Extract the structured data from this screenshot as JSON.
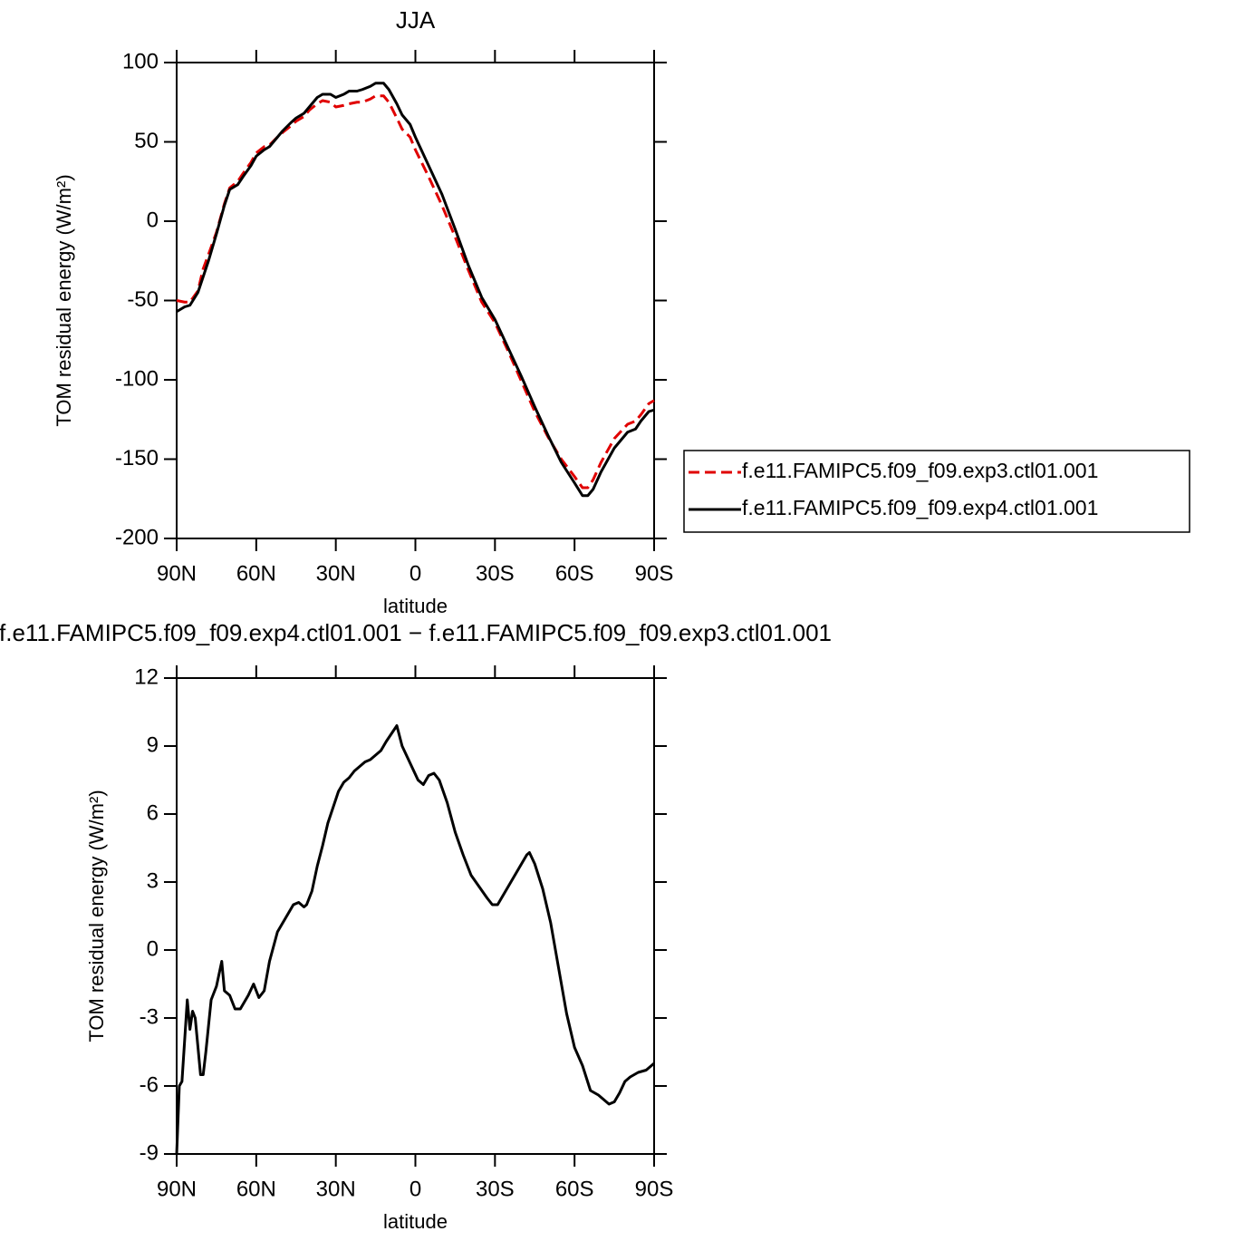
{
  "chart_data": [
    {
      "type": "line",
      "title": "JJA",
      "xlabel": "latitude",
      "ylabel": "TOM residual energy (W/m²)",
      "xlim": [
        90,
        -90
      ],
      "xticks": [
        {
          "value": 90,
          "label": "90N"
        },
        {
          "value": 60,
          "label": "60N"
        },
        {
          "value": 30,
          "label": "30N"
        },
        0,
        {
          "value": -30,
          "label": "30S"
        },
        {
          "value": -60,
          "label": "60S"
        },
        {
          "value": -90,
          "label": "90S"
        }
      ],
      "ylim": [
        -200,
        100
      ],
      "yticks": [
        -200,
        -150,
        -100,
        -50,
        0,
        50,
        100
      ],
      "legend": "right",
      "x": [
        90,
        87,
        85,
        82,
        80,
        78,
        75,
        72,
        70,
        67,
        65,
        62,
        60,
        57,
        55,
        52,
        50,
        47,
        45,
        42,
        40,
        37,
        35,
        32,
        30,
        27,
        25,
        22,
        20,
        17,
        15,
        12,
        10,
        7,
        5,
        2,
        0,
        -5,
        -10,
        -15,
        -20,
        -25,
        -30,
        -35,
        -40,
        -45,
        -50,
        -55,
        -60,
        -63,
        -65,
        -67,
        -70,
        -75,
        -80,
        -83,
        -85,
        -88,
        -90
      ],
      "series": [
        {
          "name": "f.e11.FAMIPC5.f09_f09.exp3.ctl01.001",
          "color": "#e00000",
          "dash": "dashed",
          "values": [
            -50,
            -51,
            -51,
            -44,
            -30,
            -21,
            -7,
            11,
            21,
            25,
            30,
            37,
            43,
            47,
            48,
            53,
            56,
            60,
            63,
            66,
            70,
            74,
            76,
            75,
            72,
            73,
            74,
            75,
            75,
            77,
            79,
            79,
            75,
            65,
            58,
            53,
            45,
            28,
            10,
            -10,
            -31,
            -51,
            -64,
            -82,
            -101,
            -120,
            -136,
            -150,
            -161,
            -168,
            -168,
            -163,
            -152,
            -137,
            -128,
            -126,
            -122,
            -115,
            -113
          ]
        },
        {
          "name": "f.e11.FAMIPC5.f09_f09.exp4.ctl01.001",
          "color": "#000000",
          "dash": "solid",
          "values": [
            -57,
            -54,
            -53,
            -45,
            -35,
            -25,
            -8,
            10,
            20,
            23,
            28,
            35,
            41,
            45,
            47,
            53,
            57,
            62,
            65,
            68,
            72,
            78,
            80,
            80,
            78,
            80,
            82,
            82,
            83,
            85,
            87,
            87,
            83,
            74,
            67,
            61,
            53,
            35,
            17,
            -5,
            -28,
            -48,
            -62,
            -80,
            -98,
            -117,
            -135,
            -152,
            -165,
            -173,
            -173,
            -169,
            -158,
            -143,
            -133,
            -131,
            -126,
            -120,
            -119
          ]
        }
      ]
    },
    {
      "type": "line",
      "title": "f.e11.FAMIPC5.f09_f09.exp4.ctl01.001 − f.e11.FAMIPC5.f09_f09.exp3.ctl01.001",
      "xlabel": "latitude",
      "ylabel": "TOM residual energy (W/m²)",
      "xlim": [
        90,
        -90
      ],
      "xticks": [
        {
          "value": 90,
          "label": "90N"
        },
        {
          "value": 60,
          "label": "60N"
        },
        {
          "value": 30,
          "label": "30N"
        },
        0,
        {
          "value": -30,
          "label": "30S"
        },
        {
          "value": -60,
          "label": "60S"
        },
        {
          "value": -90,
          "label": "90S"
        }
      ],
      "ylim": [
        -9,
        12
      ],
      "yticks": [
        -9,
        -6,
        -3,
        0,
        3,
        6,
        9,
        12
      ],
      "color": "#000000",
      "x": [
        90,
        89,
        88,
        86,
        85,
        84,
        83,
        81,
        80,
        79,
        77,
        75,
        73,
        72,
        70,
        68,
        66,
        63,
        61,
        59,
        57,
        55,
        52,
        50,
        48,
        46,
        44,
        42,
        41,
        39,
        37,
        35,
        33,
        31,
        29,
        27,
        25,
        23,
        21,
        19,
        17,
        15,
        13,
        11,
        7,
        5,
        3,
        1,
        -1,
        -3,
        -5,
        -7,
        -9,
        -12,
        -15,
        -18,
        -21,
        -24,
        -27,
        -29,
        -31,
        -33,
        -36,
        -39,
        -42,
        -43,
        -45,
        -48,
        -51,
        -54,
        -57,
        -60,
        -63,
        -66,
        -69,
        -71,
        -73,
        -75,
        -77,
        -79,
        -81,
        -84,
        -87,
        -90
      ],
      "values": [
        -9,
        -6,
        -5.8,
        -2.2,
        -3.5,
        -2.7,
        -3.0,
        -5.5,
        -5.5,
        -4.5,
        -2.2,
        -1.6,
        -0.5,
        -1.8,
        -2.0,
        -2.6,
        -2.6,
        -2.0,
        -1.5,
        -2.1,
        -1.8,
        -0.5,
        0.8,
        1.2,
        1.6,
        2.0,
        2.1,
        1.9,
        2.0,
        2.6,
        3.7,
        4.6,
        5.6,
        6.3,
        7.0,
        7.4,
        7.6,
        7.9,
        8.1,
        8.3,
        8.4,
        8.6,
        8.8,
        9.2,
        9.9,
        9.0,
        8.5,
        8.0,
        7.5,
        7.3,
        7.7,
        7.8,
        7.5,
        6.5,
        5.2,
        4.2,
        3.3,
        2.8,
        2.3,
        2.0,
        2.0,
        2.4,
        3.0,
        3.6,
        4.2,
        4.3,
        3.8,
        2.7,
        1.2,
        -0.8,
        -2.8,
        -4.3,
        -5.1,
        -6.2,
        -6.4,
        -6.6,
        -6.8,
        -6.7,
        -6.3,
        -5.8,
        -5.6,
        -5.4,
        -5.3,
        -5.0
      ]
    }
  ]
}
